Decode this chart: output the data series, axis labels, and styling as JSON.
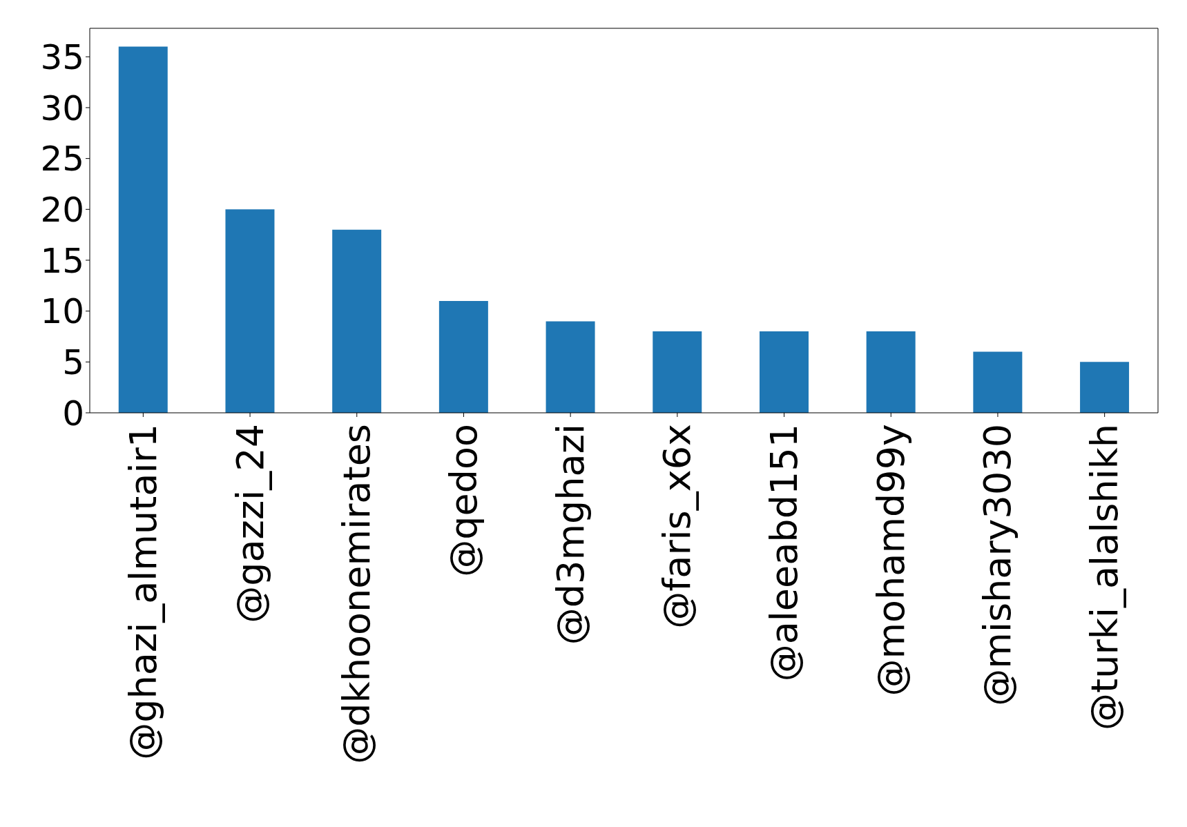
{
  "chart_data": {
    "type": "bar",
    "categories": [
      "@ghazi_almutair1",
      "@gazzi_24",
      "@dkhoonemirates",
      "@qedoo",
      "@d3mghazi",
      "@faris_x6x",
      "@aleeabd151",
      "@mohamd99y",
      "@mishary3030",
      "@turki_alalshikh"
    ],
    "values": [
      36,
      20,
      18,
      11,
      9,
      8,
      8,
      8,
      6,
      5
    ],
    "color": "#1f77b4",
    "ylim": [
      0,
      37.8
    ],
    "yticks": [
      0,
      5,
      10,
      15,
      20,
      25,
      30,
      35
    ],
    "grid": false,
    "legend": false
  }
}
